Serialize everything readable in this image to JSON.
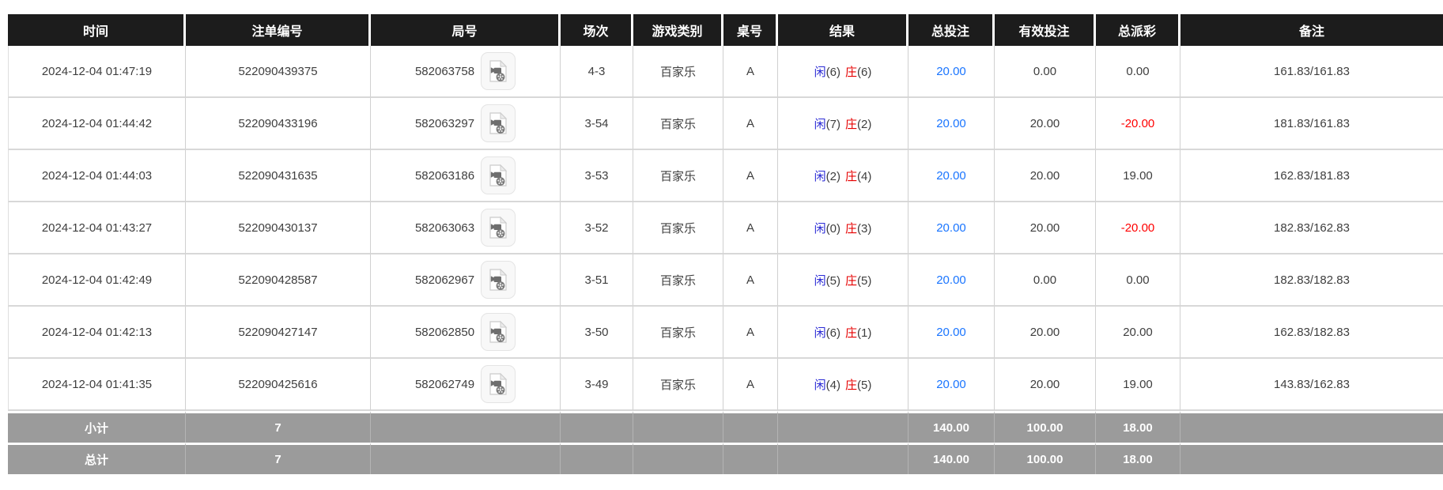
{
  "table": {
    "columns": [
      {
        "key": "time",
        "label": "时间"
      },
      {
        "key": "bet-no",
        "label": "注单编号"
      },
      {
        "key": "round-no",
        "label": "局号"
      },
      {
        "key": "session",
        "label": "场次"
      },
      {
        "key": "game-type",
        "label": "游戏类别"
      },
      {
        "key": "table-no",
        "label": "桌号"
      },
      {
        "key": "result",
        "label": "结果"
      },
      {
        "key": "total-bet",
        "label": "总投注"
      },
      {
        "key": "valid-bet",
        "label": "有效投注"
      },
      {
        "key": "total-payout",
        "label": "总派彩"
      },
      {
        "key": "remark",
        "label": "备注"
      }
    ],
    "result_labels": {
      "player": "闲",
      "banker": "庄"
    },
    "rows": [
      {
        "time": "2024-12-04 01:47:19",
        "bet_no": "522090439375",
        "round_no": "582063758",
        "session": "4-3",
        "game_type": "百家乐",
        "table_no": "A",
        "player_score": "(6)",
        "banker_score": "(6)",
        "total_bet": "20.00",
        "valid_bet": "0.00",
        "total_payout": "0.00",
        "remark": "161.83/161.83"
      },
      {
        "time": "2024-12-04 01:44:42",
        "bet_no": "522090433196",
        "round_no": "582063297",
        "session": "3-54",
        "game_type": "百家乐",
        "table_no": "A",
        "player_score": "(7)",
        "banker_score": "(2)",
        "total_bet": "20.00",
        "valid_bet": "20.00",
        "total_payout": "-20.00",
        "remark": "181.83/161.83"
      },
      {
        "time": "2024-12-04 01:44:03",
        "bet_no": "522090431635",
        "round_no": "582063186",
        "session": "3-53",
        "game_type": "百家乐",
        "table_no": "A",
        "player_score": "(2)",
        "banker_score": "(4)",
        "total_bet": "20.00",
        "valid_bet": "20.00",
        "total_payout": "19.00",
        "remark": "162.83/181.83"
      },
      {
        "time": "2024-12-04 01:43:27",
        "bet_no": "522090430137",
        "round_no": "582063063",
        "session": "3-52",
        "game_type": "百家乐",
        "table_no": "A",
        "player_score": "(0)",
        "banker_score": "(3)",
        "total_bet": "20.00",
        "valid_bet": "20.00",
        "total_payout": "-20.00",
        "remark": "182.83/162.83"
      },
      {
        "time": "2024-12-04 01:42:49",
        "bet_no": "522090428587",
        "round_no": "582062967",
        "session": "3-51",
        "game_type": "百家乐",
        "table_no": "A",
        "player_score": "(5)",
        "banker_score": "(5)",
        "total_bet": "20.00",
        "valid_bet": "0.00",
        "total_payout": "0.00",
        "remark": "182.83/182.83"
      },
      {
        "time": "2024-12-04 01:42:13",
        "bet_no": "522090427147",
        "round_no": "582062850",
        "session": "3-50",
        "game_type": "百家乐",
        "table_no": "A",
        "player_score": "(6)",
        "banker_score": "(1)",
        "total_bet": "20.00",
        "valid_bet": "20.00",
        "total_payout": "20.00",
        "remark": "162.83/182.83"
      },
      {
        "time": "2024-12-04 01:41:35",
        "bet_no": "522090425616",
        "round_no": "582062749",
        "session": "3-49",
        "game_type": "百家乐",
        "table_no": "A",
        "player_score": "(4)",
        "banker_score": "(5)",
        "total_bet": "20.00",
        "valid_bet": "20.00",
        "total_payout": "19.00",
        "remark": "143.83/162.83"
      }
    ],
    "summary_rows": [
      {
        "label": "小计",
        "count": "7",
        "total_bet": "140.00",
        "valid_bet": "100.00",
        "total_payout": "18.00"
      },
      {
        "label": "总计",
        "count": "7",
        "total_bet": "140.00",
        "valid_bet": "100.00",
        "total_payout": "18.00"
      }
    ]
  },
  "icons": {
    "round_video": "video-replay-icon"
  },
  "colors": {
    "header_bg": "#1c1c1c",
    "summary_bg": "#9b9b9b",
    "player_blue": "#2b2bd5",
    "banker_red": "#e60000",
    "bet_blue": "#1a75ff",
    "negative_red": "#ff0000"
  }
}
